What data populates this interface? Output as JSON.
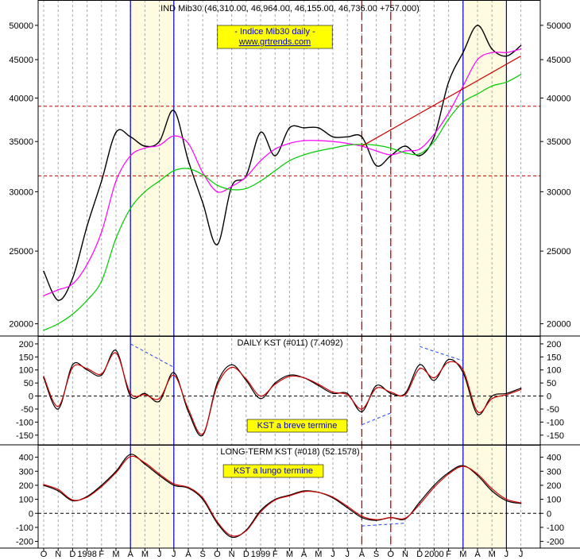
{
  "chart_data": [
    {
      "type": "line",
      "title": "IND Mib30 (46,310.00, 46,964.00, 46,155.00, 46,736.00 +757.000)",
      "annotation": [
        "- Indice Mib30 daily -",
        "www.grtrends.com"
      ],
      "y_scale": "log",
      "ylim": [
        19500,
        53000
      ],
      "yticks": [
        20000,
        25000,
        30000,
        35000,
        40000,
        45000,
        50000
      ],
      "ytick_labels": [
        "20000",
        "25000",
        "30000",
        "35000",
        "40000",
        "45000",
        "50000"
      ],
      "x": [
        "1997-10",
        "1997-11",
        "1997-12",
        "1998-01",
        "1998-02",
        "1998-03",
        "1998-04",
        "1998-05",
        "1998-06",
        "1998-07",
        "1998-08",
        "1998-09",
        "1998-10",
        "1998-11",
        "1998-12",
        "1999-01",
        "1999-02",
        "1999-03",
        "1999-04",
        "1999-05",
        "1999-06",
        "1999-07",
        "1999-08",
        "1999-09",
        "1999-10",
        "1999-11",
        "1999-12",
        "2000-01",
        "2000-02",
        "2000-03",
        "2000-04",
        "2000-05",
        "2000-06",
        "2000-07"
      ],
      "series": [
        {
          "role": "price",
          "color": "#000000",
          "values": [
            23500,
            21500,
            23000,
            27000,
            31000,
            36000,
            35500,
            34500,
            35000,
            38500,
            33000,
            29000,
            25500,
            30500,
            31500,
            36000,
            33500,
            36500,
            36500,
            36500,
            35500,
            35500,
            35500,
            32500,
            33500,
            34500,
            33500,
            35500,
            42000,
            46000,
            50000,
            46500,
            45500,
            47000
          ]
        },
        {
          "role": "short moving average",
          "color": "#ff00ff",
          "values": [
            21800,
            22200,
            22600,
            24000,
            26500,
            31000,
            33500,
            34300,
            34600,
            35600,
            34800,
            31800,
            30000,
            30500,
            31400,
            33000,
            34200,
            34800,
            35100,
            35100,
            35000,
            34800,
            34500,
            34000,
            33600,
            34000,
            34200,
            35800,
            38200,
            41500,
            45000,
            46000,
            46000,
            46500
          ]
        },
        {
          "role": "long moving average",
          "color": "#00cc00",
          "values": [
            19600,
            20000,
            20600,
            21500,
            22800,
            26000,
            28500,
            30000,
            31000,
            32000,
            32200,
            31600,
            30600,
            30200,
            30300,
            31000,
            32000,
            33000,
            33600,
            34000,
            34300,
            34600,
            34700,
            34600,
            34300,
            33800,
            33700,
            35000,
            37500,
            39500,
            40500,
            41500,
            42000,
            43000
          ]
        }
      ],
      "reference_levels": [
        39000,
        31500
      ],
      "trendline": {
        "from": {
          "x": "1999-08",
          "y": 34500
        },
        "to": {
          "x": "2000-07",
          "y": 45500
        }
      },
      "vertical_markers": {
        "solid": [
          "1998-04",
          "1998-07",
          "2000-03",
          "2000-06"
        ],
        "dashed": [
          "1999-08",
          "1999-10"
        ]
      },
      "shaded_periods": [
        [
          "1998-04",
          "1998-07"
        ],
        [
          "2000-03",
          "2000-06"
        ]
      ],
      "grid": "vertical dotted"
    },
    {
      "type": "line",
      "title": "DAILY KST (#011) (7.4092)",
      "annotation": "KST a breve termine",
      "ylim": [
        -175,
        215
      ],
      "yticks": [
        200,
        150,
        100,
        50,
        0,
        -50,
        -100,
        -150
      ],
      "ytick_labels": [
        "200",
        "150",
        "100",
        "50",
        "0",
        "-50",
        "-100",
        "-150"
      ],
      "x": [
        "1997-10",
        "1997-11",
        "1997-12",
        "1998-01",
        "1998-02",
        "1998-03",
        "1998-04",
        "1998-05",
        "1998-06",
        "1998-07",
        "1998-08",
        "1998-09",
        "1998-10",
        "1998-11",
        "1998-12",
        "1999-01",
        "1999-02",
        "1999-03",
        "1999-04",
        "1999-05",
        "1999-06",
        "1999-07",
        "1999-08",
        "1999-09",
        "1999-10",
        "1999-11",
        "1999-12",
        "2000-01",
        "2000-02",
        "2000-03",
        "2000-04",
        "2000-05",
        "2000-06",
        "2000-07"
      ],
      "series": [
        {
          "role": "kst",
          "color": "#000000",
          "values": [
            70,
            -50,
            120,
            100,
            80,
            175,
            0,
            10,
            -20,
            90,
            -60,
            -150,
            50,
            120,
            60,
            -10,
            50,
            80,
            70,
            40,
            10,
            10,
            -60,
            40,
            10,
            10,
            120,
            60,
            140,
            90,
            -70,
            0,
            10,
            30
          ]
        },
        {
          "role": "kst signal",
          "color": "#cc0000",
          "values": [
            75,
            -40,
            110,
            105,
            85,
            165,
            10,
            5,
            -10,
            80,
            -50,
            -145,
            40,
            110,
            65,
            0,
            45,
            75,
            70,
            45,
            15,
            5,
            -50,
            30,
            15,
            5,
            105,
            70,
            130,
            100,
            -60,
            -10,
            5,
            25
          ]
        }
      ],
      "divergence_lines": [
        {
          "from": {
            "x": "1998-04",
            "y": 200
          },
          "to": {
            "x": "1998-07",
            "y": 110
          }
        },
        {
          "from": {
            "x": "1999-08",
            "y": -110
          },
          "to": {
            "x": "1999-10",
            "y": -65
          }
        },
        {
          "from": {
            "x": "1999-12",
            "y": 190
          },
          "to": {
            "x": "2000-03",
            "y": 135
          }
        }
      ]
    },
    {
      "type": "line",
      "title": "LONG-TERM KST (#018) (52.1578)",
      "annotation": "KST a lungo termine",
      "ylim": [
        -225,
        460
      ],
      "yticks": [
        400,
        300,
        200,
        100,
        0,
        -100,
        -200
      ],
      "ytick_labels": [
        "400",
        "300",
        "200",
        "100",
        "0",
        "-100",
        "-200"
      ],
      "x": [
        "1997-10",
        "1997-11",
        "1997-12",
        "1998-01",
        "1998-02",
        "1998-03",
        "1998-04",
        "1998-05",
        "1998-06",
        "1998-07",
        "1998-08",
        "1998-09",
        "1998-10",
        "1998-11",
        "1998-12",
        "1999-01",
        "1999-02",
        "1999-03",
        "1999-04",
        "1999-05",
        "1999-06",
        "1999-07",
        "1999-08",
        "1999-09",
        "1999-10",
        "1999-11",
        "1999-12",
        "2000-01",
        "2000-02",
        "2000-03",
        "2000-04",
        "2000-05",
        "2000-06",
        "2000-07"
      ],
      "series": [
        {
          "role": "kst",
          "color": "#000000",
          "values": [
            200,
            160,
            90,
            120,
            200,
            300,
            420,
            350,
            270,
            200,
            180,
            100,
            -70,
            -170,
            -120,
            20,
            100,
            130,
            160,
            150,
            110,
            40,
            -30,
            -50,
            -30,
            -40,
            80,
            200,
            290,
            340,
            270,
            160,
            90,
            70
          ]
        },
        {
          "role": "kst signal",
          "color": "#cc0000",
          "values": [
            205,
            170,
            95,
            115,
            190,
            290,
            405,
            360,
            280,
            210,
            185,
            110,
            -60,
            -160,
            -125,
            10,
            95,
            125,
            155,
            150,
            115,
            50,
            -20,
            -45,
            -30,
            -35,
            65,
            185,
            280,
            335,
            280,
            175,
            100,
            75
          ]
        }
      ],
      "divergence_lines": [
        {
          "from": {
            "x": "1999-08",
            "y": -90
          },
          "to": {
            "x": "1999-11",
            "y": -70
          }
        }
      ]
    }
  ],
  "x_axis": {
    "labels": [
      "O",
      "N",
      "D",
      "1998",
      "F",
      "M",
      "A",
      "M",
      "J",
      "J",
      "A",
      "S",
      "O",
      "N",
      "D",
      "1999",
      "F",
      "M",
      "A",
      "M",
      "J",
      "J",
      "A",
      "S",
      "O",
      "N",
      "D",
      "2000",
      "F",
      "M",
      "A",
      "M",
      "J",
      "J"
    ]
  },
  "colors": {
    "shade": "#fffbe0",
    "badge_fill": "#ffff00",
    "badge_text": "#0000cc",
    "blue_marker": "#0000cc",
    "red_marker": "#cc0000",
    "divergence": "#2244ff",
    "trendline": "#cc0000",
    "level": "#cc0000"
  }
}
